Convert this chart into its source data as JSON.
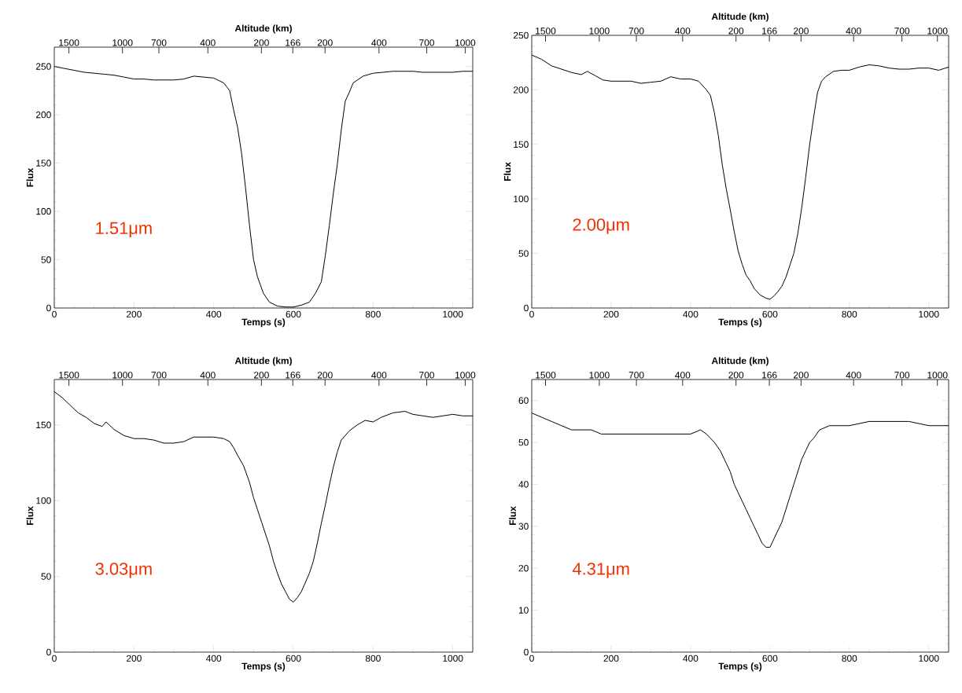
{
  "chart_data": [
    {
      "type": "line",
      "xlabel": "Temps (s)",
      "ylabel": "Flux",
      "x2label": "Altitude (km)",
      "color": "#000000",
      "xlim": [
        0,
        1050
      ],
      "ylim": [
        0,
        270
      ],
      "xticks": [
        0,
        200,
        400,
        600,
        800,
        1000
      ],
      "yticks": [
        0,
        50,
        100,
        150,
        200,
        250
      ],
      "annotations": [
        "1.51μm",
        "1500",
        "1000",
        "700",
        "400",
        "200",
        "166",
        "200",
        "400",
        "700",
        "1000"
      ],
      "x": [
        0,
        25,
        50,
        75,
        100,
        125,
        150,
        175,
        200,
        225,
        250,
        275,
        300,
        325,
        350,
        375,
        400,
        425,
        440,
        450,
        460,
        470,
        480,
        490,
        500,
        510,
        525,
        540,
        560,
        580,
        600,
        620,
        640,
        655,
        670,
        680,
        690,
        700,
        710,
        720,
        730,
        740,
        750,
        775,
        800,
        825,
        850,
        875,
        900,
        925,
        950,
        975,
        1000,
        1025,
        1050
      ],
      "values": [
        250,
        248,
        246,
        244,
        243,
        242,
        241,
        239,
        237,
        237,
        236,
        236,
        236,
        237,
        240,
        239,
        238,
        233,
        225,
        205,
        187,
        160,
        124,
        85,
        50,
        32,
        15,
        6,
        2,
        1,
        1,
        3,
        6,
        15,
        27,
        54,
        85,
        118,
        148,
        184,
        214,
        223,
        233,
        240,
        243,
        244,
        245,
        245,
        245,
        244,
        244,
        244,
        244,
        245,
        245
      ]
    },
    {
      "type": "line",
      "xlabel": "Temps (s)",
      "ylabel": "Flux",
      "x2label": "Altitude (km)",
      "color": "#000000",
      "xlim": [
        0,
        1050
      ],
      "ylim": [
        0,
        250
      ],
      "xticks": [
        0,
        200,
        400,
        600,
        800,
        1000
      ],
      "yticks": [
        0,
        50,
        100,
        150,
        200,
        250
      ],
      "annotations": [
        "2.00μm",
        "1500",
        "1000",
        "700",
        "400",
        "200",
        "166",
        "200",
        "400",
        "700",
        "1000"
      ],
      "x": [
        0,
        25,
        50,
        75,
        100,
        125,
        140,
        160,
        180,
        200,
        250,
        275,
        300,
        325,
        350,
        375,
        400,
        420,
        440,
        450,
        460,
        470,
        480,
        490,
        500,
        510,
        520,
        530,
        540,
        550,
        560,
        575,
        590,
        600,
        610,
        620,
        630,
        640,
        650,
        660,
        670,
        680,
        690,
        700,
        710,
        720,
        730,
        740,
        760,
        780,
        800,
        825,
        850,
        875,
        900,
        925,
        950,
        975,
        1000,
        1025,
        1050
      ],
      "values": [
        232,
        228,
        222,
        219,
        216,
        214,
        217,
        213,
        209,
        208,
        208,
        206,
        207,
        208,
        212,
        210,
        210,
        208,
        200,
        195,
        179,
        158,
        131,
        109,
        90,
        70,
        52,
        40,
        30,
        25,
        18,
        12,
        9,
        8,
        11,
        15,
        20,
        28,
        39,
        50,
        68,
        92,
        120,
        150,
        175,
        198,
        208,
        212,
        217,
        218,
        218,
        221,
        223,
        222,
        220,
        219,
        219,
        220,
        220,
        218,
        221
      ]
    },
    {
      "type": "line",
      "xlabel": "Temps (s)",
      "ylabel": "Flux",
      "x2label": "Altitude (km)",
      "color": "#000000",
      "xlim": [
        0,
        1050
      ],
      "ylim": [
        0,
        180
      ],
      "xticks": [
        0,
        200,
        400,
        600,
        800,
        1000
      ],
      "yticks": [
        0,
        50,
        100,
        150
      ],
      "annotations": [
        "3.03μm",
        "1500",
        "1000",
        "700",
        "400",
        "200",
        "166",
        "200",
        "400",
        "700",
        "1000"
      ],
      "x": [
        0,
        20,
        40,
        60,
        80,
        100,
        120,
        130,
        150,
        175,
        200,
        225,
        250,
        275,
        300,
        325,
        350,
        375,
        400,
        425,
        440,
        450,
        460,
        475,
        490,
        500,
        510,
        520,
        530,
        540,
        550,
        560,
        570,
        580,
        590,
        600,
        610,
        620,
        630,
        640,
        650,
        660,
        670,
        680,
        690,
        700,
        710,
        720,
        740,
        760,
        780,
        800,
        820,
        850,
        880,
        900,
        925,
        950,
        975,
        1000,
        1025,
        1050
      ],
      "values": [
        172,
        168,
        163,
        158,
        155,
        151,
        149,
        152,
        147,
        143,
        141,
        141,
        140,
        138,
        138,
        139,
        142,
        142,
        142,
        141,
        139,
        135,
        130,
        123,
        112,
        102,
        94,
        86,
        78,
        70,
        60,
        52,
        45,
        40,
        35,
        33,
        36,
        40,
        46,
        52,
        60,
        72,
        85,
        97,
        110,
        122,
        132,
        140,
        146,
        150,
        153,
        152,
        155,
        158,
        159,
        157,
        156,
        155,
        156,
        157,
        156,
        156
      ]
    },
    {
      "type": "line",
      "xlabel": "Temps (s)",
      "ylabel": "Flux",
      "x2label": "Altitude (km)",
      "color": "#000000",
      "xlim": [
        0,
        1050
      ],
      "ylim": [
        0,
        65
      ],
      "xticks": [
        0,
        200,
        400,
        600,
        800,
        1000
      ],
      "yticks": [
        0,
        10,
        20,
        30,
        40,
        50,
        60
      ],
      "annotations": [
        "4.31μm",
        "1500",
        "1000",
        "700",
        "400",
        "200",
        "166",
        "200",
        "400",
        "700",
        "1000"
      ],
      "x": [
        0,
        25,
        50,
        75,
        100,
        125,
        150,
        175,
        200,
        250,
        300,
        350,
        400,
        425,
        440,
        450,
        460,
        475,
        490,
        500,
        510,
        520,
        530,
        540,
        550,
        560,
        570,
        580,
        590,
        600,
        610,
        620,
        630,
        640,
        650,
        660,
        670,
        680,
        690,
        700,
        710,
        725,
        750,
        775,
        800,
        850,
        900,
        950,
        1000,
        1050
      ],
      "values": [
        57,
        56,
        55,
        54,
        53,
        53,
        53,
        52,
        52,
        52,
        52,
        52,
        52,
        53,
        52,
        51,
        50,
        48,
        45,
        43,
        40,
        38,
        36,
        34,
        32,
        30,
        28,
        26,
        25,
        25,
        27,
        29,
        31,
        34,
        37,
        40,
        43,
        46,
        48,
        50,
        51,
        53,
        54,
        54,
        54,
        55,
        55,
        55,
        54,
        54
      ]
    }
  ]
}
